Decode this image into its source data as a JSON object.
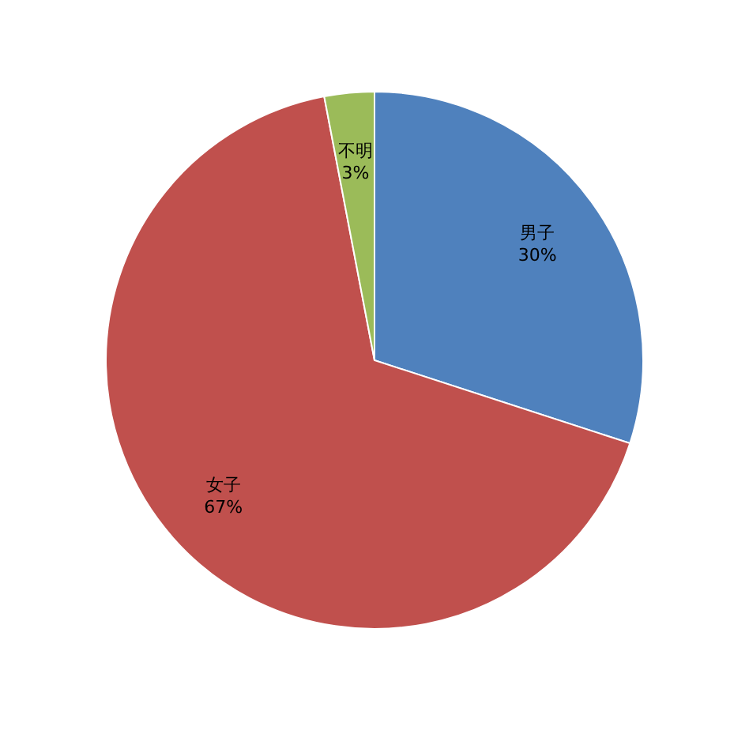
{
  "chart_data": {
    "type": "pie",
    "categories": [
      "男子",
      "女子",
      "不明"
    ],
    "values": [
      30,
      67,
      3
    ],
    "colors": [
      "#4f81bd",
      "#c0504d",
      "#9bbb59"
    ],
    "value_labels": [
      "30%",
      "67%",
      "3%"
    ]
  }
}
